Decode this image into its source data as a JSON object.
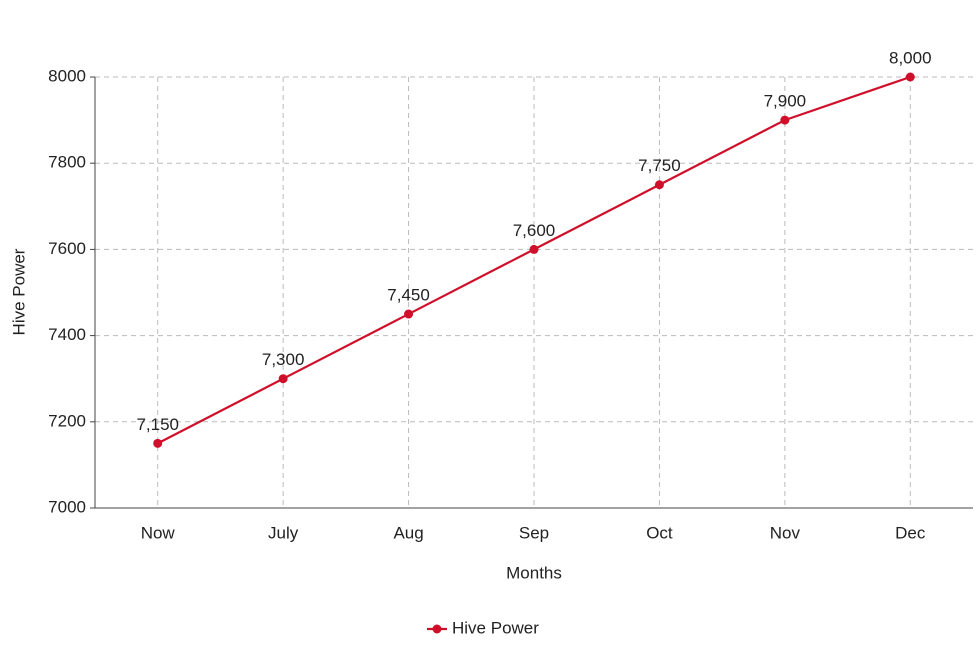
{
  "chart_data": {
    "type": "line",
    "categories": [
      "Now",
      "July",
      "Aug",
      "Sep",
      "Oct",
      "Nov",
      "Dec"
    ],
    "series": [
      {
        "name": "Hive Power",
        "color": "#d0102a",
        "values": [
          7150,
          7300,
          7450,
          7600,
          7750,
          7900,
          8000
        ],
        "value_labels": [
          "7,150",
          "7,300",
          "7,450",
          "7,600",
          "7,750",
          "7,900",
          "8,000"
        ]
      }
    ],
    "ylim": [
      7000,
      8000
    ],
    "yticks": [
      7000,
      7200,
      7400,
      7600,
      7800,
      8000
    ],
    "x_label": "Months",
    "y_label": "Hive Power",
    "grid": true,
    "legend": "bottom"
  }
}
